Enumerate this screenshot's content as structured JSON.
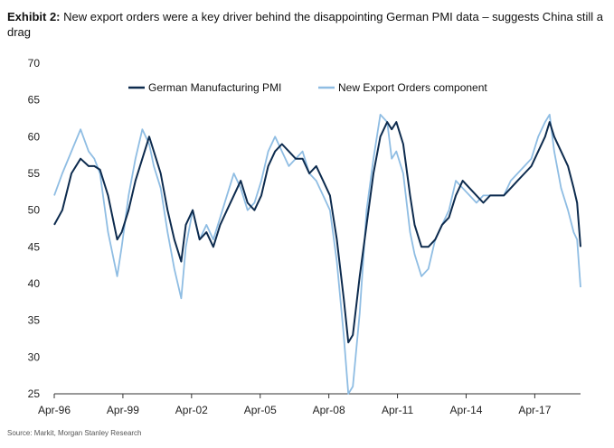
{
  "title": {
    "exhibit": "Exhibit 2:",
    "text": "New export orders were a key driver behind the disappointing German PMI data – suggests China still a drag"
  },
  "source": "Source: Markit, Morgan Stanley Research",
  "colors": {
    "pmi": "#0d2b4e",
    "export": "#8fbde3",
    "axis": "#333333"
  },
  "chart_data": {
    "type": "line",
    "title": "",
    "xlabel": "",
    "ylabel": "",
    "ylim": [
      25,
      70
    ],
    "yticks": [
      25,
      30,
      35,
      40,
      45,
      50,
      55,
      60,
      65,
      70
    ],
    "xticks": [
      "Apr-96",
      "Apr-99",
      "Apr-02",
      "Apr-05",
      "Apr-08",
      "Apr-11",
      "Apr-14",
      "Apr-17"
    ],
    "xticks_t": [
      1996.25,
      1999.25,
      2002.25,
      2005.25,
      2008.25,
      2011.25,
      2014.25,
      2017.25
    ],
    "xlim": [
      1996.25,
      2019.25
    ],
    "legend_position": "top",
    "series": [
      {
        "name": "German Manufacturing PMI",
        "x": [
          1996.25,
          1996.6,
          1997.0,
          1997.4,
          1997.75,
          1998.0,
          1998.25,
          1998.6,
          1999.0,
          1999.2,
          1999.5,
          1999.8,
          2000.1,
          2000.4,
          2000.6,
          2000.9,
          2001.2,
          2001.5,
          2001.8,
          2002.0,
          2002.3,
          2002.6,
          2002.9,
          2003.2,
          2003.5,
          2003.8,
          2004.1,
          2004.4,
          2004.7,
          2005.0,
          2005.3,
          2005.6,
          2005.9,
          2006.2,
          2006.5,
          2006.8,
          2007.1,
          2007.4,
          2007.7,
          2008.0,
          2008.3,
          2008.6,
          2008.9,
          2009.1,
          2009.3,
          2009.6,
          2009.9,
          2010.2,
          2010.5,
          2010.8,
          2011.0,
          2011.2,
          2011.5,
          2011.8,
          2012.0,
          2012.3,
          2012.6,
          2012.9,
          2013.2,
          2013.5,
          2013.8,
          2014.1,
          2014.4,
          2014.7,
          2015.0,
          2015.3,
          2015.6,
          2015.9,
          2016.2,
          2016.5,
          2016.8,
          2017.1,
          2017.4,
          2017.7,
          2017.9,
          2018.1,
          2018.4,
          2018.7,
          2018.95,
          2019.1,
          2019.25
        ],
        "values": [
          48,
          50,
          55,
          57,
          56,
          56,
          55.5,
          52,
          46,
          47,
          50,
          54,
          57,
          60,
          58,
          55,
          50,
          46,
          43,
          48,
          50,
          46,
          47,
          45,
          48,
          50,
          52,
          54,
          51,
          50,
          52,
          56,
          58,
          59,
          58,
          57,
          57,
          55,
          56,
          54,
          52,
          46,
          38,
          32,
          33,
          41,
          48,
          55,
          60,
          62,
          61,
          62,
          59,
          52,
          48,
          45,
          45,
          46,
          48,
          49,
          52,
          54,
          53,
          52,
          51,
          52,
          52,
          52,
          53,
          54,
          55,
          56,
          58,
          60,
          62,
          60,
          58,
          56,
          53,
          51,
          45
        ]
      },
      {
        "name": "New Export Orders component",
        "x": [
          1996.25,
          1996.6,
          1997.0,
          1997.4,
          1997.75,
          1998.0,
          1998.25,
          1998.6,
          1999.0,
          1999.2,
          1999.5,
          1999.8,
          2000.1,
          2000.4,
          2000.6,
          2000.9,
          2001.2,
          2001.5,
          2001.8,
          2002.0,
          2002.3,
          2002.6,
          2002.9,
          2003.2,
          2003.5,
          2003.8,
          2004.1,
          2004.4,
          2004.7,
          2005.0,
          2005.3,
          2005.6,
          2005.9,
          2006.2,
          2006.5,
          2006.8,
          2007.1,
          2007.4,
          2007.7,
          2008.0,
          2008.3,
          2008.6,
          2008.9,
          2009.1,
          2009.3,
          2009.6,
          2009.9,
          2010.2,
          2010.5,
          2010.8,
          2011.0,
          2011.2,
          2011.5,
          2011.8,
          2012.0,
          2012.3,
          2012.6,
          2012.9,
          2013.2,
          2013.5,
          2013.8,
          2014.1,
          2014.4,
          2014.7,
          2015.0,
          2015.3,
          2015.6,
          2015.9,
          2016.2,
          2016.5,
          2016.8,
          2017.1,
          2017.4,
          2017.7,
          2017.9,
          2018.1,
          2018.4,
          2018.7,
          2018.95,
          2019.1,
          2019.25
        ],
        "values": [
          52,
          55,
          58,
          61,
          58,
          57,
          55,
          47,
          41,
          45,
          52,
          57,
          61,
          59,
          56,
          53,
          47,
          42,
          38,
          45,
          50,
          46,
          48,
          46,
          49,
          52,
          55,
          53,
          50,
          51,
          54,
          58,
          60,
          58,
          56,
          57,
          58,
          55,
          54,
          52,
          50,
          43,
          33,
          25,
          26,
          36,
          50,
          57,
          63,
          62,
          57,
          58,
          55,
          47,
          44,
          41,
          42,
          46,
          48,
          50,
          54,
          53,
          52,
          51,
          52,
          52,
          52,
          52,
          54,
          55,
          56,
          57,
          60,
          62,
          63,
          58,
          53,
          50,
          47,
          46,
          39.5
        ]
      }
    ]
  }
}
